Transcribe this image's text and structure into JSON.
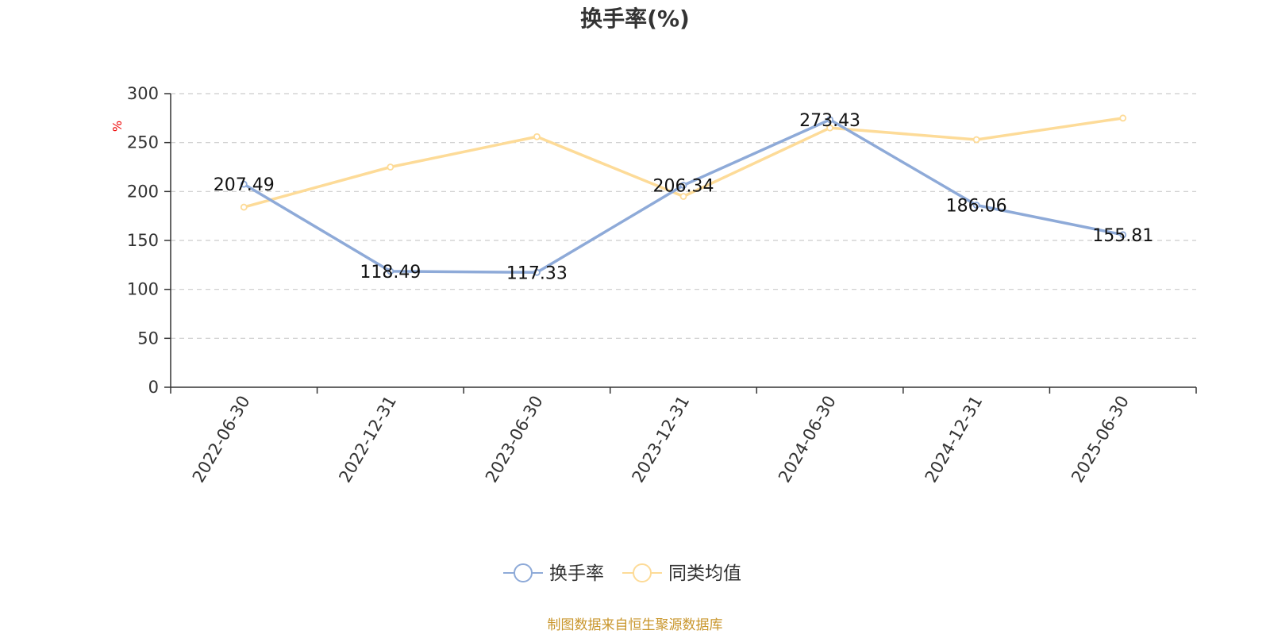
{
  "chart_data": {
    "type": "line",
    "title": "换手率(%)",
    "ylabel": "%",
    "xlabel": "",
    "categories": [
      "2022-06-30",
      "2022-12-31",
      "2023-06-30",
      "2023-12-31",
      "2024-06-30",
      "2024-12-31",
      "2025-06-30"
    ],
    "ylim": [
      0,
      300
    ],
    "yticks": [
      0,
      50,
      100,
      150,
      200,
      250,
      300
    ],
    "grid": true,
    "legend_position": "bottom-center",
    "series": [
      {
        "name": "换手率",
        "color": "#8eaad8",
        "values": [
          207.49,
          118.49,
          117.33,
          206.34,
          273.43,
          186.06,
          155.81
        ],
        "labels": [
          "207.49",
          "118.49",
          "117.33",
          "206.34",
          "273.43",
          "186.06",
          "155.81"
        ]
      },
      {
        "name": "同类均值",
        "color": "#fddb98",
        "values": [
          184,
          225,
          256,
          195,
          265,
          253,
          275
        ]
      }
    ]
  },
  "source_note": "制图数据来自恒生聚源数据库",
  "colors": {
    "axis": "#333333",
    "grid": "#cccccc",
    "unit_label": "#ee0000",
    "source_note": "#c9962c"
  }
}
